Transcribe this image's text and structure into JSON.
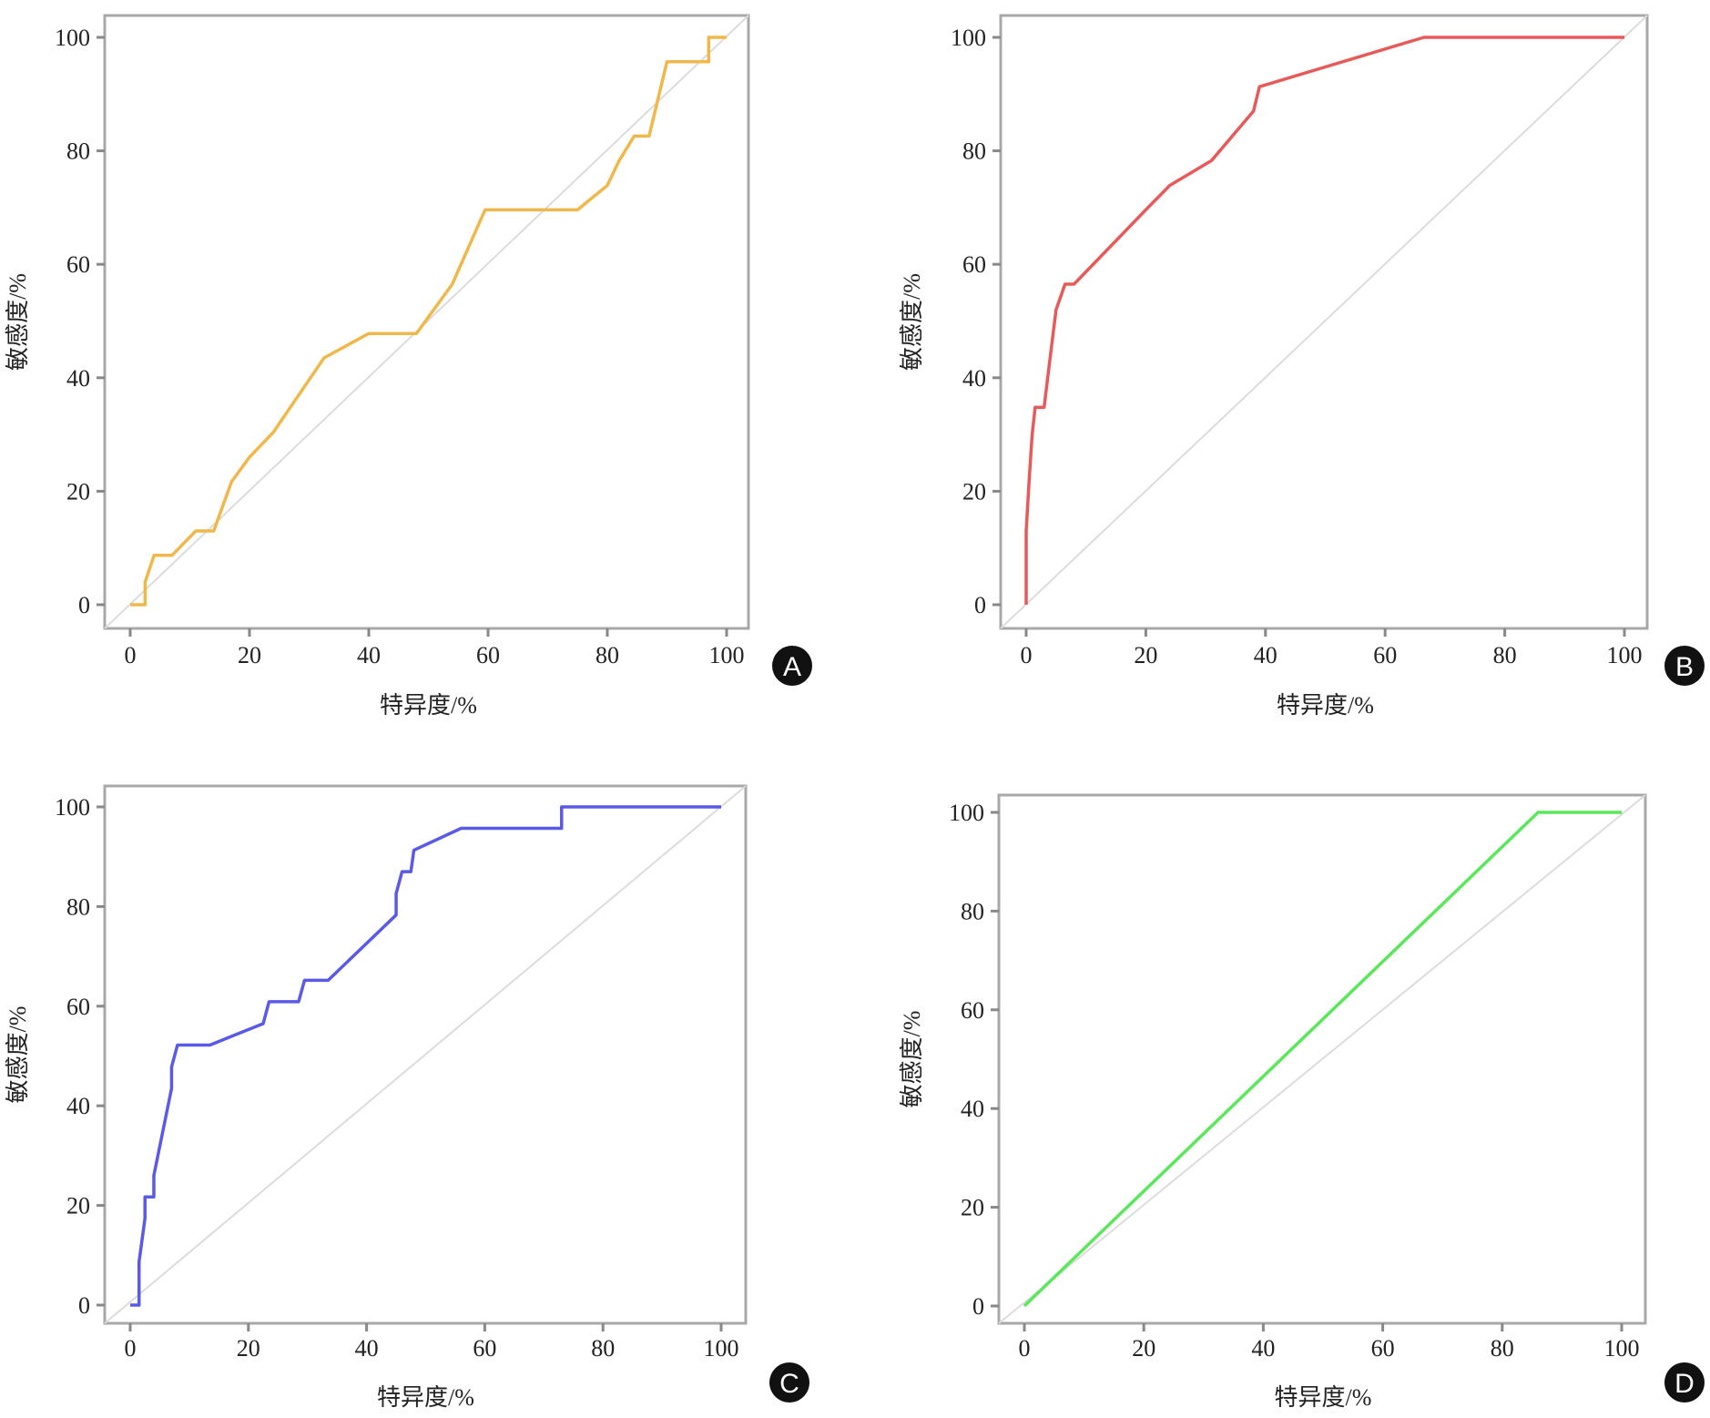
{
  "chart_data": [
    {
      "type": "line",
      "panel_label": "A",
      "xlabel": "特异度/%",
      "ylabel": "敏感度/%",
      "xlim": [
        0,
        100
      ],
      "ylim": [
        0,
        100
      ],
      "xticks": [
        "0",
        "20",
        "40",
        "60",
        "80",
        "100"
      ],
      "yticks": [
        "0",
        "20",
        "40",
        "60",
        "80",
        "100"
      ],
      "color": "#f0b84a",
      "reference_line": "diagonal",
      "x": [
        0,
        2.5,
        2.5,
        4,
        7,
        11,
        14,
        17,
        20,
        24,
        32.5,
        40,
        48,
        54,
        59.5,
        75,
        80,
        82,
        84.5,
        87,
        90,
        97,
        97,
        100
      ],
      "y": [
        0,
        0,
        4,
        8.7,
        8.7,
        13,
        13,
        21.7,
        26,
        30.4,
        43.5,
        47.8,
        47.8,
        56.5,
        69.6,
        69.6,
        73.9,
        78.3,
        82.6,
        82.6,
        95.7,
        95.7,
        100,
        100
      ]
    },
    {
      "type": "line",
      "panel_label": "B",
      "xlabel": "特异度/%",
      "ylabel": "敏感度/%",
      "xlim": [
        0,
        100
      ],
      "ylim": [
        0,
        100
      ],
      "xticks": [
        "0",
        "20",
        "40",
        "60",
        "80",
        "100"
      ],
      "yticks": [
        "0",
        "20",
        "40",
        "60",
        "80",
        "100"
      ],
      "color": "#e85a5a",
      "reference_line": "diagonal",
      "x": [
        0,
        0,
        0.5,
        1,
        1.5,
        3,
        4,
        5,
        6.5,
        8,
        20,
        24,
        31,
        38,
        39,
        66.5,
        100
      ],
      "y": [
        0,
        13,
        22,
        30,
        34.8,
        34.8,
        43.5,
        52,
        56.5,
        56.5,
        69.6,
        73.9,
        78.3,
        87,
        91.3,
        100,
        100
      ]
    },
    {
      "type": "line",
      "panel_label": "C",
      "xlabel": "特异度/%",
      "ylabel": "敏感度/%",
      "xlim": [
        0,
        100
      ],
      "ylim": [
        0,
        100
      ],
      "xticks": [
        "0",
        "20",
        "40",
        "60",
        "80",
        "100"
      ],
      "yticks": [
        "0",
        "20",
        "40",
        "60",
        "80",
        "100"
      ],
      "color": "#5a5ae8",
      "reference_line": "diagonal",
      "x": [
        0,
        1.5,
        1.5,
        2.5,
        2.5,
        4,
        4,
        7,
        7,
        8,
        13.5,
        22.5,
        23.5,
        28.5,
        29.5,
        33.5,
        45,
        45,
        46,
        47.5,
        48,
        56,
        73,
        73,
        100
      ],
      "y": [
        0,
        0,
        8.7,
        17.4,
        21.7,
        21.7,
        26,
        43.5,
        47.8,
        52.2,
        52.2,
        56.5,
        60.9,
        60.9,
        65.2,
        65.2,
        78.3,
        82.6,
        87,
        87,
        91.3,
        95.7,
        95.7,
        100,
        100
      ]
    },
    {
      "type": "line",
      "panel_label": "D",
      "xlabel": "特异度/%",
      "ylabel": "敏感度/%",
      "xlim": [
        0,
        100
      ],
      "ylim": [
        0,
        100
      ],
      "xticks": [
        "0",
        "20",
        "40",
        "60",
        "80",
        "100"
      ],
      "yticks": [
        "0",
        "20",
        "40",
        "60",
        "80",
        "100"
      ],
      "color": "#5ae85a",
      "reference_line": "diagonal",
      "x": [
        0,
        86,
        100
      ],
      "y": [
        0,
        100,
        100
      ]
    }
  ]
}
